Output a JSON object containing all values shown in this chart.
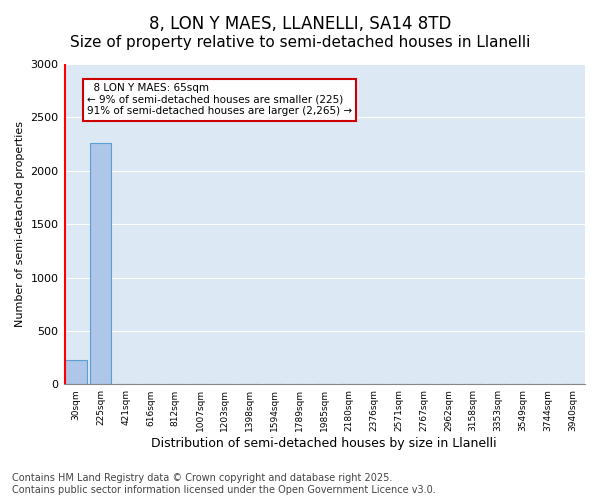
{
  "title": "8, LON Y MAES, LLANELLI, SA14 8TD",
  "subtitle": "Size of property relative to semi-detached houses in Llanelli",
  "xlabel": "Distribution of semi-detached houses by size in Llanelli",
  "ylabel": "Number of semi-detached properties",
  "bins": [
    "30sqm",
    "225sqm",
    "421sqm",
    "616sqm",
    "812sqm",
    "1007sqm",
    "1203sqm",
    "1398sqm",
    "1594sqm",
    "1789sqm",
    "1985sqm",
    "2180sqm",
    "2376sqm",
    "2571sqm",
    "2767sqm",
    "2962sqm",
    "3158sqm",
    "3353sqm",
    "3549sqm",
    "3744sqm",
    "3940sqm"
  ],
  "bar_heights": [
    225,
    2265,
    0,
    0,
    0,
    0,
    0,
    0,
    0,
    0,
    0,
    0,
    0,
    0,
    0,
    0,
    0,
    0,
    0,
    0,
    0
  ],
  "bar_color": "#aec6e8",
  "bar_edge_color": "#5a9fd4",
  "property_label": "8 LON Y MAES: 65sqm",
  "pct_smaller": 9,
  "pct_larger": 91,
  "n_smaller": 225,
  "n_larger": 2265,
  "red_line_x": -0.425,
  "ylim": [
    0,
    3000
  ],
  "yticks": [
    0,
    500,
    1000,
    1500,
    2000,
    2500,
    3000
  ],
  "background_color": "#dce9f5",
  "footer": "Contains HM Land Registry data © Crown copyright and database right 2025.\nContains public sector information licensed under the Open Government Licence v3.0.",
  "annotation_box_color": "#ffffff",
  "annotation_border_color": "#cc0000",
  "title_fontsize": 12,
  "subtitle_fontsize": 11,
  "ylabel_fontsize": 8,
  "xlabel_fontsize": 9,
  "footer_fontsize": 7
}
